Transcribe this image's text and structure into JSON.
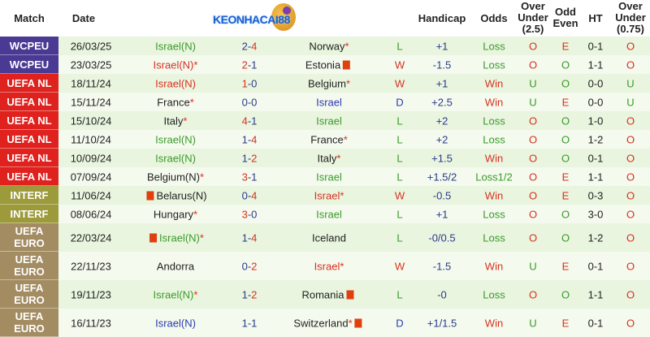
{
  "header": {
    "match": "Match",
    "date": "Date",
    "handicap": "Handicap",
    "odds": "Odds",
    "over_under": "Over Under (2.5)",
    "odd_even": "Odd Even",
    "ht": "HT",
    "over_under_075": "Over Under (0.75)"
  },
  "logo": {
    "text": "KEONHACAI88"
  },
  "colors": {
    "WCPEU": "#4a3a94",
    "UEFA NL": "#e0221f",
    "INTERF": "#9c9a3a",
    "UEFA EURO": "#a38c62"
  },
  "rows": [
    {
      "league": "WCPEU",
      "date": "26/03/25",
      "home": "Israel(N)",
      "home_star": false,
      "home_card": false,
      "home_color": "g",
      "hg": "2",
      "ag": "4",
      "away": "Norway",
      "away_star": true,
      "away_card": false,
      "away_color": "k",
      "result": "L",
      "handicap": "+1",
      "odds": "Loss",
      "ou": "O",
      "oe": "E",
      "ht": "0-1",
      "ou075": "O"
    },
    {
      "league": "WCPEU",
      "date": "23/03/25",
      "home": "Israel(N)",
      "home_star": true,
      "home_card": false,
      "home_color": "r",
      "hg": "2",
      "ag": "1",
      "away": "Estonia",
      "away_star": false,
      "away_card": true,
      "away_color": "k",
      "result": "W",
      "handicap": "-1.5",
      "odds": "Loss",
      "ou": "O",
      "oe": "O",
      "ht": "1-1",
      "ou075": "O"
    },
    {
      "league": "UEFA NL",
      "date": "18/11/24",
      "home": "Israel(N)",
      "home_star": false,
      "home_card": false,
      "home_color": "r",
      "hg": "1",
      "ag": "0",
      "away": "Belgium",
      "away_star": true,
      "away_card": false,
      "away_color": "k",
      "result": "W",
      "handicap": "+1",
      "odds": "Win",
      "ou": "U",
      "oe": "O",
      "ht": "0-0",
      "ou075": "U"
    },
    {
      "league": "UEFA NL",
      "date": "15/11/24",
      "home": "France",
      "home_star": true,
      "home_card": false,
      "home_color": "k",
      "hg": "0",
      "ag": "0",
      "away": "Israel",
      "away_star": false,
      "away_card": false,
      "away_color": "b",
      "result": "D",
      "handicap": "+2.5",
      "odds": "Win",
      "ou": "U",
      "oe": "E",
      "ht": "0-0",
      "ou075": "U"
    },
    {
      "league": "UEFA NL",
      "date": "15/10/24",
      "home": "Italy",
      "home_star": true,
      "home_card": false,
      "home_color": "k",
      "hg": "4",
      "ag": "1",
      "away": "Israel",
      "away_star": false,
      "away_card": false,
      "away_color": "g",
      "result": "L",
      "handicap": "+2",
      "odds": "Loss",
      "ou": "O",
      "oe": "O",
      "ht": "1-0",
      "ou075": "O"
    },
    {
      "league": "UEFA NL",
      "date": "11/10/24",
      "home": "Israel(N)",
      "home_star": false,
      "home_card": false,
      "home_color": "g",
      "hg": "1",
      "ag": "4",
      "away": "France",
      "away_star": true,
      "away_card": false,
      "away_color": "k",
      "result": "L",
      "handicap": "+2",
      "odds": "Loss",
      "ou": "O",
      "oe": "O",
      "ht": "1-2",
      "ou075": "O"
    },
    {
      "league": "UEFA NL",
      "date": "10/09/24",
      "home": "Israel(N)",
      "home_star": false,
      "home_card": false,
      "home_color": "g",
      "hg": "1",
      "ag": "2",
      "away": "Italy",
      "away_star": true,
      "away_card": false,
      "away_color": "k",
      "result": "L",
      "handicap": "+1.5",
      "odds": "Win",
      "ou": "O",
      "oe": "O",
      "ht": "0-1",
      "ou075": "O"
    },
    {
      "league": "UEFA NL",
      "date": "07/09/24",
      "home": "Belgium(N)",
      "home_star": true,
      "home_card": false,
      "home_color": "k",
      "hg": "3",
      "ag": "1",
      "away": "Israel",
      "away_star": false,
      "away_card": false,
      "away_color": "g",
      "result": "L",
      "handicap": "+1.5/2",
      "odds": "Loss1/2",
      "ou": "O",
      "oe": "E",
      "ht": "1-1",
      "ou075": "O"
    },
    {
      "league": "INTERF",
      "date": "11/06/24",
      "home": "Belarus(N)",
      "home_star": false,
      "home_card": true,
      "home_color": "k",
      "hg": "0",
      "ag": "4",
      "away": "Israel",
      "away_star": true,
      "away_card": false,
      "away_color": "r",
      "result": "W",
      "handicap": "-0.5",
      "odds": "Win",
      "ou": "O",
      "oe": "E",
      "ht": "0-3",
      "ou075": "O"
    },
    {
      "league": "INTERF",
      "date": "08/06/24",
      "home": "Hungary",
      "home_star": true,
      "home_card": false,
      "home_color": "k",
      "hg": "3",
      "ag": "0",
      "away": "Israel",
      "away_star": false,
      "away_card": false,
      "away_color": "g",
      "result": "L",
      "handicap": "+1",
      "odds": "Loss",
      "ou": "O",
      "oe": "O",
      "ht": "3-0",
      "ou075": "O"
    },
    {
      "league": "UEFA EURO",
      "date": "22/03/24",
      "home": "Israel(N)",
      "home_star": true,
      "home_card": true,
      "home_color": "g",
      "hg": "1",
      "ag": "4",
      "away": "Iceland",
      "away_star": false,
      "away_card": false,
      "away_color": "k",
      "result": "L",
      "handicap": "-0/0.5",
      "odds": "Loss",
      "ou": "O",
      "oe": "O",
      "ht": "1-2",
      "ou075": "O"
    },
    {
      "league": "UEFA EURO",
      "date": "22/11/23",
      "home": "Andorra",
      "home_star": false,
      "home_card": false,
      "home_color": "k",
      "hg": "0",
      "ag": "2",
      "away": "Israel",
      "away_star": true,
      "away_card": false,
      "away_color": "r",
      "result": "W",
      "handicap": "-1.5",
      "odds": "Win",
      "ou": "U",
      "oe": "E",
      "ht": "0-1",
      "ou075": "O"
    },
    {
      "league": "UEFA EURO",
      "date": "19/11/23",
      "home": "Israel(N)",
      "home_star": true,
      "home_card": false,
      "home_color": "g",
      "hg": "1",
      "ag": "2",
      "away": "Romania",
      "away_star": false,
      "away_card": true,
      "away_color": "k",
      "result": "L",
      "handicap": "-0",
      "odds": "Loss",
      "ou": "O",
      "oe": "O",
      "ht": "1-1",
      "ou075": "O"
    },
    {
      "league": "UEFA EURO",
      "date": "16/11/23",
      "home": "Israel(N)",
      "home_star": false,
      "home_card": false,
      "home_color": "b",
      "hg": "1",
      "ag": "1",
      "away": "Switzerland",
      "away_star": true,
      "away_card": true,
      "away_color": "k",
      "result": "D",
      "handicap": "+1/1.5",
      "odds": "Win",
      "ou": "U",
      "oe": "E",
      "ht": "0-1",
      "ou075": "O"
    }
  ]
}
